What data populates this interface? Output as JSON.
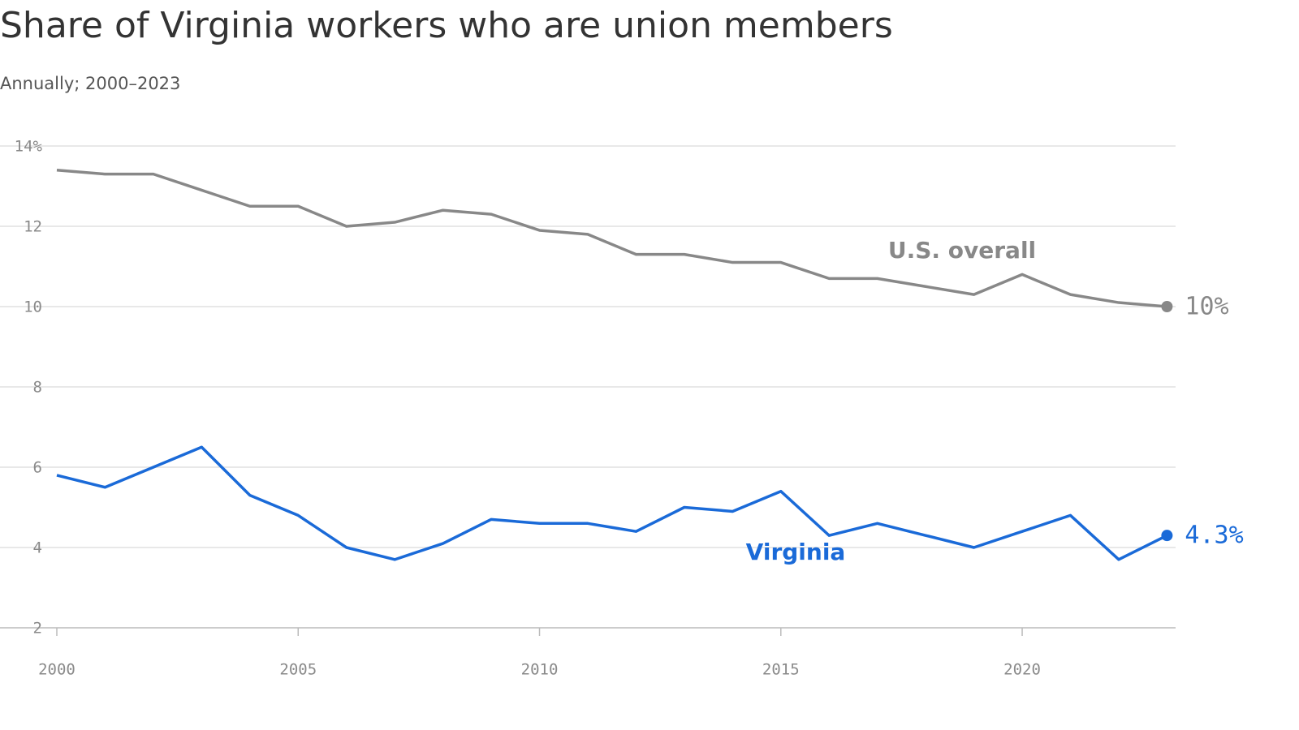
{
  "chart_data": {
    "type": "line",
    "title": "Share of Virginia workers who are union members",
    "subtitle": "Annually; 2000–2023",
    "x": [
      2000,
      2001,
      2002,
      2003,
      2004,
      2005,
      2006,
      2007,
      2008,
      2009,
      2010,
      2011,
      2012,
      2013,
      2014,
      2015,
      2016,
      2017,
      2018,
      2019,
      2020,
      2021,
      2022,
      2023
    ],
    "series": [
      {
        "name": "U.S. overall",
        "color": "#888888",
        "values": [
          13.4,
          13.3,
          13.3,
          12.9,
          12.5,
          12.5,
          12.0,
          12.1,
          12.4,
          12.3,
          11.9,
          11.8,
          11.3,
          11.3,
          11.1,
          11.1,
          10.7,
          10.7,
          10.5,
          10.3,
          10.8,
          10.3,
          10.1,
          10.0
        ],
        "value_labels": [
          null,
          null,
          null,
          null,
          null,
          null,
          null,
          null,
          null,
          null,
          null,
          null,
          null,
          null,
          null,
          null,
          null,
          null,
          null,
          null,
          null,
          null,
          null,
          "10%"
        ]
      },
      {
        "name": "Virginia",
        "color": "#1a6ad8",
        "values": [
          5.8,
          5.5,
          6.0,
          6.5,
          5.3,
          4.8,
          4.0,
          3.7,
          4.1,
          4.7,
          4.6,
          4.6,
          4.4,
          5.0,
          4.9,
          5.4,
          4.3,
          4.6,
          4.3,
          4.0,
          4.4,
          4.8,
          3.7,
          4.3
        ],
        "value_labels": [
          null,
          null,
          null,
          null,
          null,
          null,
          null,
          null,
          null,
          null,
          null,
          null,
          null,
          null,
          null,
          null,
          null,
          null,
          null,
          null,
          null,
          null,
          null,
          "4.3%"
        ]
      }
    ],
    "xlim": [
      2000,
      2023
    ],
    "xticks": [
      2000,
      2005,
      2010,
      2015,
      2020
    ],
    "ylim": [
      2,
      14
    ],
    "yticks": [
      2,
      4,
      6,
      8,
      10,
      12,
      {
        "value": 14,
        "label": "14%"
      }
    ],
    "grid": true
  }
}
